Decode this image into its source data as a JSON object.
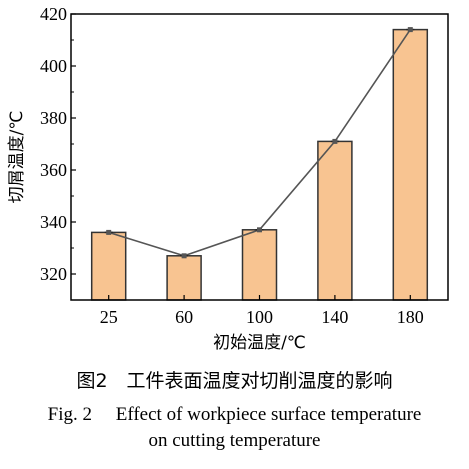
{
  "chart_data": {
    "type": "bar",
    "categories": [
      "25",
      "60",
      "100",
      "140",
      "180"
    ],
    "values": [
      336,
      327,
      337,
      371,
      414
    ],
    "overlay_line": true,
    "xlabel": "初始温度/℃",
    "ylabel": "切屑温度/℃",
    "ylim": [
      310,
      420
    ],
    "yticks": [
      320,
      340,
      360,
      380,
      400,
      420
    ],
    "grid": false,
    "colors": {
      "bar_fill": "#f8c491",
      "bar_stroke": "#333333",
      "line": "#555555",
      "marker": "#555555"
    }
  },
  "caption": {
    "cn": "图2　工件表面温度对切削温度的影响",
    "en_line1": "Fig. 2　 Effect of workpiece surface temperature",
    "en_line2": "on cutting temperature"
  }
}
